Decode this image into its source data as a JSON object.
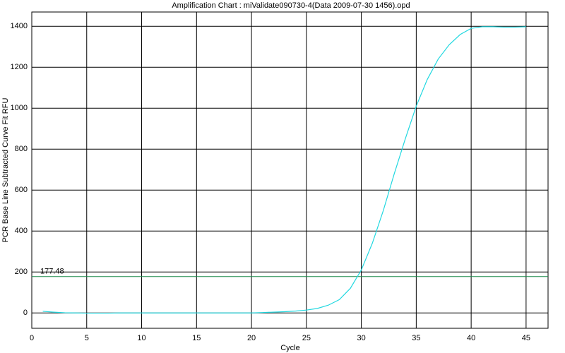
{
  "chart_data": {
    "type": "line",
    "title": "Amplification Chart : miValidate090730-4(Data 2009-07-30 1456).opd",
    "x_label": "Cycle",
    "y_label": "PCR Base Line Subtracted Curve Fit RFU",
    "x": [
      1,
      2,
      3,
      4,
      5,
      6,
      7,
      8,
      9,
      10,
      11,
      12,
      13,
      14,
      15,
      16,
      17,
      18,
      19,
      20,
      21,
      22,
      23,
      24,
      25,
      26,
      27,
      28,
      29,
      30,
      31,
      32,
      33,
      34,
      35,
      36,
      37,
      38,
      39,
      40,
      41,
      42,
      43,
      44,
      45
    ],
    "series": [
      {
        "color": "#22d8e0",
        "values": [
          8,
          4,
          1,
          0,
          -1,
          -1,
          -1,
          0,
          0,
          0,
          0,
          0,
          0,
          0,
          0,
          0,
          0,
          0,
          0,
          0,
          2,
          4,
          6,
          9,
          14,
          22,
          38,
          65,
          120,
          210,
          340,
          500,
          680,
          850,
          1010,
          1140,
          1240,
          1310,
          1360,
          1390,
          1398,
          1398,
          1396,
          1396,
          1398
        ]
      }
    ],
    "threshold": {
      "value": 177.48,
      "label": "177.48",
      "color": "#1a8a4a"
    },
    "xlim": [
      0,
      47
    ],
    "xticks": [
      0,
      5,
      10,
      15,
      20,
      25,
      30,
      35,
      40,
      45
    ],
    "ylim": [
      -75,
      1470
    ],
    "yticks": [
      0,
      200,
      400,
      600,
      800,
      1000,
      1200,
      1400
    ],
    "grid": true
  }
}
